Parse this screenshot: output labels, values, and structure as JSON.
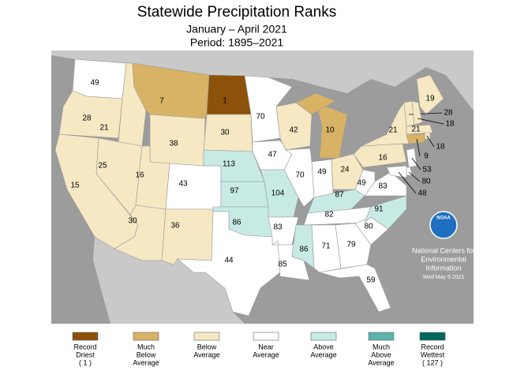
{
  "header": {
    "title": "Statewide Precipitation Ranks",
    "subtitle": "January – April 2021",
    "period": "Period: 1895–2021"
  },
  "regions": [
    {
      "value": 49,
      "color": "#ffffff"
    },
    {
      "value": 28,
      "color": "#f6e8c3"
    },
    {
      "value": 15,
      "color": "#f6e8c3"
    },
    {
      "value": 21,
      "color": "#f6e8c3"
    },
    {
      "value": 25,
      "color": "#f6e8c3"
    },
    {
      "value": 7,
      "color": "#d8b365"
    },
    {
      "value": 38,
      "color": "#f6e8c3"
    },
    {
      "value": 16,
      "color": "#f6e8c3"
    },
    {
      "value": 30,
      "color": "#f6e8c3"
    },
    {
      "value": 43,
      "color": "#ffffff"
    },
    {
      "value": 36,
      "color": "#f6e8c3"
    },
    {
      "value": 1,
      "color": "#8c510a"
    },
    {
      "value": 30,
      "color": "#f6e8c3"
    },
    {
      "value": 113,
      "color": "#c7eae5"
    },
    {
      "value": 97,
      "color": "#c7eae5"
    },
    {
      "value": 86,
      "color": "#c7eae5"
    },
    {
      "value": 44,
      "color": "#ffffff"
    },
    {
      "value": 70,
      "color": "#ffffff"
    },
    {
      "value": 47,
      "color": "#ffffff"
    },
    {
      "value": 104,
      "color": "#c7eae5"
    },
    {
      "value": 83,
      "color": "#ffffff"
    },
    {
      "value": 85,
      "color": "#ffffff"
    },
    {
      "value": 42,
      "color": "#f6e8c3"
    },
    {
      "value": 70,
      "color": "#ffffff"
    },
    {
      "value": 10,
      "color": "#d8b365"
    },
    {
      "value": 49,
      "color": "#ffffff"
    },
    {
      "value": 24,
      "color": "#f6e8c3"
    },
    {
      "value": 87,
      "color": "#c7eae5"
    },
    {
      "value": 82,
      "color": "#ffffff"
    },
    {
      "value": 86,
      "color": "#c7eae5"
    },
    {
      "value": 71,
      "color": "#ffffff"
    },
    {
      "value": 79,
      "color": "#ffffff"
    },
    {
      "value": 59,
      "color": "#ffffff"
    },
    {
      "value": 80,
      "color": "#ffffff"
    },
    {
      "value": 91,
      "color": "#c7eae5"
    },
    {
      "value": 83,
      "color": "#ffffff"
    },
    {
      "value": 49,
      "color": "#ffffff"
    },
    {
      "value": 16,
      "color": "#f6e8c3"
    },
    {
      "value": 21,
      "color": "#f6e8c3"
    },
    {
      "value": 19,
      "color": "#f6e8c3"
    },
    {
      "value": 28,
      "color": "#f6e8c3"
    },
    {
      "value": 18,
      "color": "#f6e8c3"
    },
    {
      "value": 21,
      "color": "#f6e8c3"
    },
    {
      "value": 18,
      "color": "#f6e8c3"
    },
    {
      "value": 9,
      "color": "#d8b365"
    },
    {
      "value": 53,
      "color": "#ffffff"
    },
    {
      "value": 80,
      "color": "#ffffff"
    },
    {
      "value": 48,
      "color": "#ffffff"
    }
  ],
  "legend": [
    {
      "label": [
        "Record",
        "Driest",
        "( 1 )"
      ],
      "color": "#8c510a"
    },
    {
      "label": [
        "Much",
        "Below",
        "Average"
      ],
      "color": "#d8b365"
    },
    {
      "label": [
        "Below",
        "Average"
      ],
      "color": "#f6e8c3"
    },
    {
      "label": [
        "Near",
        "Average"
      ],
      "color": "#ffffff"
    },
    {
      "label": [
        "Above",
        "Average"
      ],
      "color": "#c7eae5"
    },
    {
      "label": [
        "Much",
        "Above",
        "Average"
      ],
      "color": "#5ab4ac"
    },
    {
      "label": [
        "Record",
        "Wettest",
        "( 127 )"
      ],
      "color": "#01665e"
    }
  ],
  "credit": {
    "logo": "NOAA",
    "lines": [
      "National Centers for",
      "Environmental",
      "Information"
    ],
    "date": "Wed May  5 2021"
  }
}
